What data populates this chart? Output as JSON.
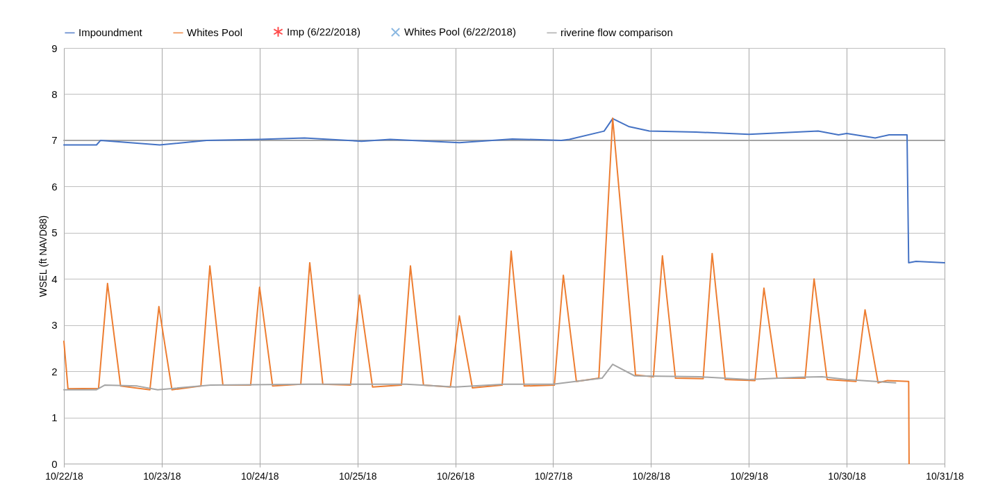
{
  "chart_data": {
    "type": "line",
    "ylabel": "WSEL (ft NAVD88)",
    "xlim": [
      "2018-10-22",
      "2018-10-31"
    ],
    "ylim": [
      0,
      9
    ],
    "yticks": [
      0,
      1,
      2,
      3,
      4,
      5,
      6,
      7,
      8,
      9
    ],
    "xticks": [
      {
        "value": "2018-10-22",
        "label": "10/22/18"
      },
      {
        "value": "2018-10-23",
        "label": "10/23/18"
      },
      {
        "value": "2018-10-24",
        "label": "10/24/18"
      },
      {
        "value": "2018-10-25",
        "label": "10/25/18"
      },
      {
        "value": "2018-10-26",
        "label": "10/26/18"
      },
      {
        "value": "2018-10-27",
        "label": "10/27/18"
      },
      {
        "value": "2018-10-28",
        "label": "10/28/18"
      },
      {
        "value": "2018-10-29",
        "label": "10/29/18"
      },
      {
        "value": "2018-10-30",
        "label": "10/30/18"
      },
      {
        "value": "2018-10-31",
        "label": "10/31/18"
      }
    ],
    "grid": true,
    "legend": "top",
    "series": [
      {
        "color": "#a5a5a5",
        "x": [
          "2018-10-22T00:00",
          "2018-10-31T00:00"
        ],
        "values": [
          7.0,
          7.0
        ]
      },
      {
        "name": "Impoundment",
        "color": "#4472c4",
        "x": [
          "2018-10-22T00:00",
          "2018-10-22T08:00",
          "2018-10-22T09:00",
          "2018-10-22T23:30",
          "2018-10-23T11:00",
          "2018-10-24T00:00",
          "2018-10-24T11:00",
          "2018-10-25T01:00",
          "2018-10-25T08:00",
          "2018-10-26T01:00",
          "2018-10-26T14:00",
          "2018-10-27T02:00",
          "2018-10-27T04:00",
          "2018-10-27T12:30",
          "2018-10-27T14:36",
          "2018-10-27T18:30",
          "2018-10-27T23:36",
          "2018-10-28T11:00",
          "2018-10-29T00:00",
          "2018-10-29T17:00",
          "2018-10-29T22:00",
          "2018-10-30T00:00",
          "2018-10-30T07:00",
          "2018-10-30T10:24",
          "2018-10-30T14:48",
          "2018-10-30T15:12",
          "2018-10-30T17:00",
          "2018-10-31T00:00"
        ],
        "values": [
          6.9,
          6.9,
          7.0,
          6.9,
          7.0,
          7.02,
          7.05,
          6.98,
          7.02,
          6.95,
          7.03,
          7.0,
          7.02,
          7.2,
          7.47,
          7.3,
          7.2,
          7.18,
          7.13,
          7.2,
          7.12,
          7.15,
          7.05,
          7.12,
          7.12,
          4.35,
          4.38,
          4.35
        ]
      },
      {
        "name": "Whites Pool",
        "color": "#ed7d31",
        "x": [
          "2018-10-22T00:00",
          "2018-10-22T01:00",
          "2018-10-22T08:30",
          "2018-10-22T10:42",
          "2018-10-22T13:54",
          "2018-10-22T21:06",
          "2018-10-22T23:18",
          "2018-10-23T02:30",
          "2018-10-23T09:36",
          "2018-10-23T11:48",
          "2018-10-23T15:00",
          "2018-10-23T21:48",
          "2018-10-24T00:00",
          "2018-10-24T03:12",
          "2018-10-24T10:06",
          "2018-10-24T12:18",
          "2018-10-24T15:30",
          "2018-10-24T22:18",
          "2018-10-25T00:30",
          "2018-10-25T03:42",
          "2018-10-25T10:48",
          "2018-10-25T13:00",
          "2018-10-25T16:12",
          "2018-10-25T22:48",
          "2018-10-26T01:00",
          "2018-10-26T04:12",
          "2018-10-26T11:30",
          "2018-10-26T13:42",
          "2018-10-26T16:54",
          "2018-10-27T00:18",
          "2018-10-27T02:30",
          "2018-10-27T05:42",
          "2018-10-27T11:12",
          "2018-10-27T14:36",
          "2018-10-27T20:12",
          "2018-10-28T00:36",
          "2018-10-28T02:48",
          "2018-10-28T06:00",
          "2018-10-28T12:48",
          "2018-10-28T15:00",
          "2018-10-28T18:12",
          "2018-10-29T01:30",
          "2018-10-29T03:42",
          "2018-10-29T06:54",
          "2018-10-29T13:48",
          "2018-10-29T16:00",
          "2018-10-29T19:12",
          "2018-10-30T02:18",
          "2018-10-30T04:30",
          "2018-10-30T07:42",
          "2018-10-30T10:00",
          "2018-10-30T15:12",
          "2018-10-30T15:18"
        ],
        "values": [
          2.65,
          1.62,
          1.63,
          3.9,
          1.68,
          1.6,
          3.4,
          1.6,
          1.68,
          4.28,
          1.7,
          1.7,
          3.82,
          1.68,
          1.72,
          4.35,
          1.72,
          1.7,
          3.65,
          1.66,
          1.7,
          4.28,
          1.7,
          1.66,
          3.2,
          1.64,
          1.7,
          4.6,
          1.68,
          1.7,
          4.08,
          1.78,
          1.85,
          7.48,
          1.92,
          1.88,
          4.5,
          1.85,
          1.84,
          4.55,
          1.82,
          1.8,
          3.8,
          1.85,
          1.85,
          4.0,
          1.82,
          1.78,
          3.33,
          1.75,
          1.8,
          1.78,
          0
        ]
      },
      {
        "name": "Imp (6/22/2018)",
        "type": "scatter",
        "marker": "star",
        "color": "#ff0000"
      },
      {
        "name": "Whites Pool (6/22/2018)",
        "type": "scatter",
        "marker": "cross",
        "color": "#5b9bd5"
      },
      {
        "name": "riverine flow comparison",
        "color": "#a5a5a5",
        "x": [
          "2018-10-22T00:00",
          "2018-10-22T08:00",
          "2018-10-22T10:00",
          "2018-10-22T18:00",
          "2018-10-22T23:00",
          "2018-10-23T12:00",
          "2018-10-24T12:00",
          "2018-10-25T12:00",
          "2018-10-26T00:00",
          "2018-10-26T12:00",
          "2018-10-27T00:00",
          "2018-10-27T12:00",
          "2018-10-27T14:36",
          "2018-10-27T20:00",
          "2018-10-28T12:00",
          "2018-10-29T00:00",
          "2018-10-29T12:00",
          "2018-10-29T18:00",
          "2018-10-30T00:00",
          "2018-10-30T12:00"
        ],
        "values": [
          1.6,
          1.6,
          1.7,
          1.68,
          1.6,
          1.7,
          1.72,
          1.72,
          1.66,
          1.72,
          1.72,
          1.85,
          2.15,
          1.9,
          1.88,
          1.82,
          1.87,
          1.88,
          1.82,
          1.75
        ]
      }
    ]
  }
}
